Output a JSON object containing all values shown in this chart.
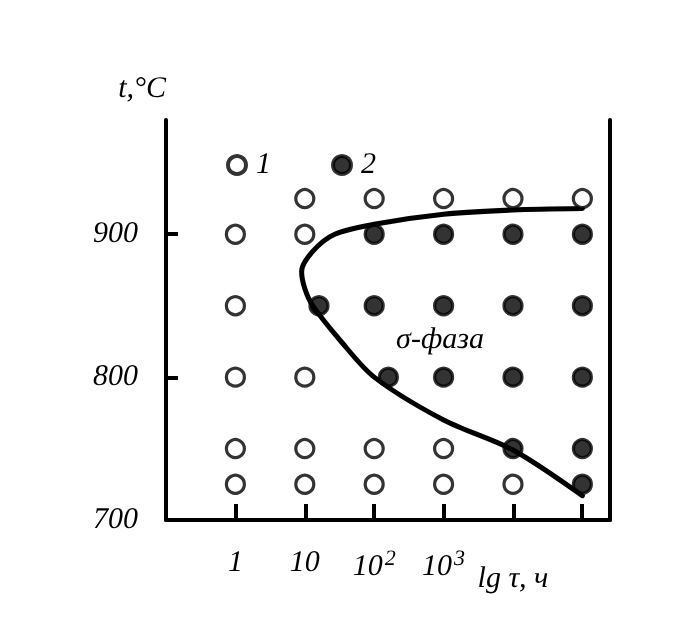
{
  "chart_data": {
    "type": "scatter",
    "ylabel": "t,°C",
    "xlabel": "lg τ, ч",
    "xlim": [
      0.1,
      250000
    ],
    "xticks": [
      1,
      10,
      {
        "value": 100,
        "label": "10$^{2}$"
      },
      {
        "value": 1000,
        "label": "10$^{3}$"
      },
      {
        "value": 10000,
        "label": null
      },
      {
        "value": 100000,
        "label": null
      }
    ],
    "log": "x",
    "ylim": [
      700,
      980
    ],
    "yticks": [
      700,
      800,
      900
    ],
    "series": [
      {
        "name": "1",
        "color": "#ffffff",
        "x": [
          10,
          100,
          1000,
          10000,
          100000,
          1,
          10,
          1,
          1,
          10,
          1,
          10,
          100,
          1000,
          1,
          10,
          100,
          1000,
          10000
        ],
        "values": [
          925,
          925,
          925,
          925,
          925,
          900,
          900,
          850,
          800,
          800,
          750,
          750,
          750,
          750,
          725,
          725,
          725,
          725,
          725
        ]
      },
      {
        "name": "2",
        "color": "#000000",
        "x": [
          100,
          1000,
          10000,
          100000,
          16,
          100,
          1000,
          10000,
          100000,
          160,
          1000,
          10000,
          100000,
          10000,
          100000,
          100000
        ],
        "values": [
          900,
          900,
          900,
          900,
          850,
          850,
          850,
          850,
          850,
          800,
          800,
          800,
          800,
          750,
          750,
          725
        ]
      },
      {
        "type": "line",
        "color": "#000000",
        "marker": "none",
        "x": [
          100000,
          10000,
          1000,
          100,
          27,
          13,
          9,
          10,
          13,
          32,
          100,
          1000,
          10000,
          100000
        ],
        "values": [
          918,
          917,
          914,
          907,
          900,
          888,
          874,
          862,
          850,
          826,
          800,
          770,
          749,
          717
        ]
      }
    ],
    "annotations": [
      "σ-фаза"
    ],
    "marker": "circle",
    "grid": false,
    "legend": "top left"
  }
}
